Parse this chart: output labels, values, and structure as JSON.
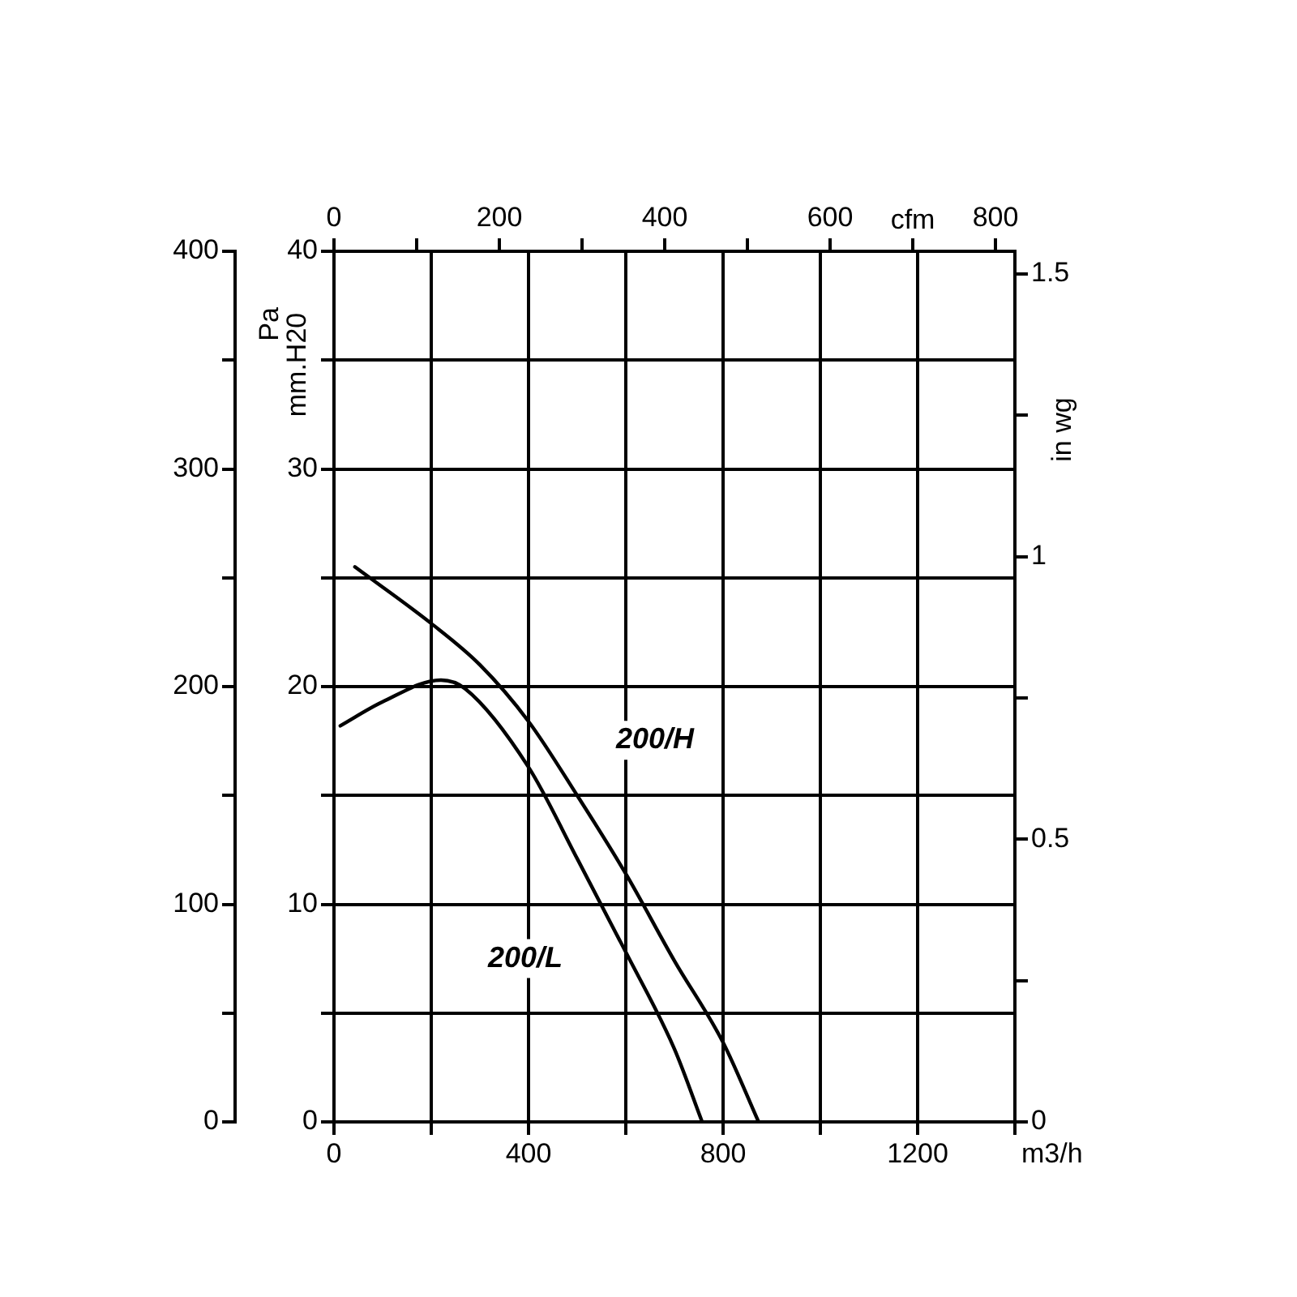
{
  "chart_data": {
    "type": "line",
    "xlabel": "m3/h",
    "ylabel": "mm.H20",
    "y2label": "in wg",
    "y3label": "Pa",
    "x2label": "cfm",
    "xlim": [
      0,
      1400
    ],
    "xticks": [
      0,
      {
        "value": 200,
        "label": null
      },
      400,
      {
        "value": 600,
        "label": null
      },
      800,
      {
        "value": 1000,
        "label": null
      },
      1200,
      {
        "value": 1400,
        "label": null
      }
    ],
    "ylim": [
      0,
      40
    ],
    "yticks": [
      0,
      {
        "value": 5,
        "label": null
      },
      10,
      {
        "value": 15,
        "label": null
      },
      20,
      {
        "value": 25,
        "label": null
      },
      30,
      {
        "value": 35,
        "label": null
      },
      40
    ],
    "y2lim": [
      0,
      1.54
    ],
    "y2ticks": [
      0,
      {
        "value": 0.25,
        "label": null
      },
      0.5,
      {
        "value": 0.75,
        "label": null
      },
      1,
      {
        "value": 1.25,
        "label": null
      },
      1.5
    ],
    "y3lim": [
      0,
      400
    ],
    "y3ticks": [
      0,
      {
        "value": 50,
        "label": null
      },
      100,
      {
        "value": 150,
        "label": null
      },
      200,
      {
        "value": 250,
        "label": null
      },
      300,
      {
        "value": 350,
        "label": null
      },
      400
    ],
    "x2lim": [
      0,
      823.5
    ],
    "x2ticks": [
      0,
      {
        "value": 100,
        "label": null
      },
      200,
      {
        "value": 300,
        "label": null
      },
      400,
      {
        "value": 500,
        "label": null
      },
      600,
      {
        "value": 700,
        "label": null
      },
      800
    ],
    "grid": true,
    "legend": false,
    "marker": "none",
    "line_style": "solid",
    "series": [
      {
        "name": "200/H",
        "color": "#000000",
        "x": [
          43,
          200,
          300,
          400,
          500,
          600,
          700,
          800,
          873
        ],
        "values": [
          25.5,
          22.9,
          21.0,
          18.4,
          15.0,
          11.4,
          7.4,
          3.65,
          0
        ]
      },
      {
        "name": "200/L",
        "color": "#000000",
        "x": [
          13,
          100,
          220,
          270,
          400,
          500,
          600,
          700,
          757
        ],
        "values": [
          18.2,
          19.3,
          20.3,
          19.9,
          16.3,
          12.1,
          7.8,
          3.35,
          0
        ]
      }
    ]
  }
}
